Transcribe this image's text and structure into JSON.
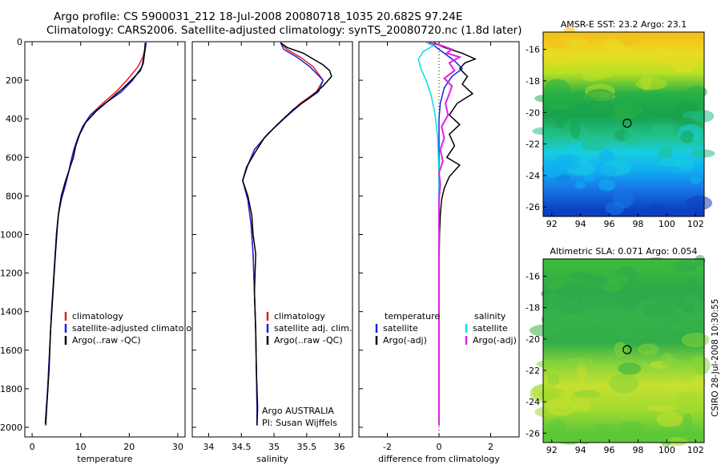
{
  "header": {
    "line1": "Argo profile: CS 5900031_212 18-Jul-2008 20080718_1035 20.682S 97.24E",
    "line2": "Climatology: CARS2006. Satellite-adjusted climatology: synTS_20080720.nc (1.8d later)"
  },
  "chart_data": [
    {
      "type": "line",
      "id": "temperature-panel",
      "xlabel": "temperature",
      "ylabel": "",
      "xlim": [
        -1.5,
        31.5
      ],
      "ylim": [
        2050,
        0
      ],
      "xticks": [
        0,
        10,
        20,
        30
      ],
      "yticks": [
        0,
        200,
        400,
        600,
        800,
        1000,
        1200,
        1400,
        1600,
        1800,
        2000
      ],
      "legend": {
        "position": "lower-right",
        "entries": [
          "climatology",
          "satellite-adjusted climatology",
          "Argo(..raw -QC)"
        ]
      },
      "series": [
        {
          "name": "climatology",
          "color": "#e02020",
          "width": 1.5,
          "points": [
            [
              23.4,
              5
            ],
            [
              23.2,
              40
            ],
            [
              22.8,
              80
            ],
            [
              21.8,
              130
            ],
            [
              19.5,
              200
            ],
            [
              17.3,
              260
            ],
            [
              14.5,
              320
            ],
            [
              12,
              380
            ],
            [
              10.5,
              440
            ],
            [
              9.4,
              500
            ],
            [
              8.6,
              560
            ],
            [
              8,
              620
            ],
            [
              7.5,
              680
            ],
            [
              6.9,
              740
            ],
            [
              6,
              820
            ],
            [
              5.4,
              900
            ],
            [
              5,
              1000
            ],
            [
              4.5,
              1200
            ],
            [
              4,
              1400
            ],
            [
              3.6,
              1600
            ],
            [
              3.2,
              1800
            ],
            [
              2.7,
              1980
            ]
          ]
        },
        {
          "name": "satellite-adjusted climatology",
          "color": "#2020e0",
          "width": 1.5,
          "points": [
            [
              23.5,
              5
            ],
            [
              23.3,
              40
            ],
            [
              23,
              80
            ],
            [
              22.6,
              130
            ],
            [
              20.7,
              200
            ],
            [
              18.4,
              260
            ],
            [
              15,
              320
            ],
            [
              12,
              380
            ],
            [
              10.4,
              440
            ],
            [
              9.4,
              500
            ],
            [
              8.6,
              560
            ],
            [
              8,
              620
            ],
            [
              7.5,
              680
            ],
            [
              6.9,
              740
            ],
            [
              6,
              820
            ],
            [
              5.4,
              900
            ],
            [
              5,
              1000
            ],
            [
              4.5,
              1200
            ],
            [
              4,
              1400
            ],
            [
              3.6,
              1600
            ],
            [
              3.2,
              1800
            ],
            [
              2.7,
              1980
            ]
          ]
        },
        {
          "name": "Argo(..raw -QC)",
          "color": "#000000",
          "width": 1.5,
          "points": [
            [
              23.3,
              5
            ],
            [
              23.2,
              40
            ],
            [
              23.1,
              70
            ],
            [
              22.9,
              110
            ],
            [
              22.3,
              150
            ],
            [
              20.8,
              190
            ],
            [
              18.8,
              240
            ],
            [
              16,
              300
            ],
            [
              13.2,
              360
            ],
            [
              11,
              420
            ],
            [
              9.8,
              480
            ],
            [
              9,
              540
            ],
            [
              8.5,
              600
            ],
            [
              7.7,
              660
            ],
            [
              6.9,
              720
            ],
            [
              6,
              800
            ],
            [
              5.5,
              880
            ],
            [
              5.2,
              960
            ],
            [
              4.8,
              1100
            ],
            [
              4.3,
              1300
            ],
            [
              3.8,
              1500
            ],
            [
              3.5,
              1700
            ],
            [
              3,
              1900
            ],
            [
              2.8,
              1990
            ]
          ]
        }
      ]
    },
    {
      "type": "line",
      "id": "salinity-panel",
      "xlabel": "salinity",
      "ylabel": "",
      "xlim": [
        33.75,
        36.2
      ],
      "ylim": [
        2050,
        0
      ],
      "xticks": [
        34,
        34.5,
        35,
        35.5,
        36
      ],
      "xticklabels": [
        "34",
        "34.5",
        "35",
        "35.5",
        "36"
      ],
      "legend": {
        "position": "lower-right",
        "entries": [
          "climatology",
          "satellite adj. clim.",
          "Argo(..raw -QC)"
        ]
      },
      "annotations": [
        "Argo AUSTRALIA",
        "PI: Susan Wijffels"
      ],
      "series": [
        {
          "name": "climatology",
          "color": "#e02020",
          "width": 1.5,
          "points": [
            [
              35.1,
              5
            ],
            [
              35.2,
              40
            ],
            [
              35.4,
              80
            ],
            [
              35.6,
              130
            ],
            [
              35.75,
              200
            ],
            [
              35.65,
              260
            ],
            [
              35.4,
              320
            ],
            [
              35.15,
              400
            ],
            [
              34.9,
              480
            ],
            [
              34.7,
              560
            ],
            [
              34.6,
              640
            ],
            [
              34.52,
              720
            ],
            [
              34.6,
              820
            ],
            [
              34.65,
              950
            ],
            [
              34.68,
              1100
            ],
            [
              34.7,
              1300
            ],
            [
              34.72,
              1500
            ],
            [
              34.73,
              1700
            ],
            [
              34.74,
              1900
            ],
            [
              34.74,
              1990
            ]
          ]
        },
        {
          "name": "satellite adj. clim.",
          "color": "#2020e0",
          "width": 1.5,
          "points": [
            [
              35.1,
              5
            ],
            [
              35.15,
              40
            ],
            [
              35.35,
              80
            ],
            [
              35.55,
              130
            ],
            [
              35.75,
              200
            ],
            [
              35.68,
              260
            ],
            [
              35.42,
              320
            ],
            [
              35.15,
              400
            ],
            [
              34.9,
              480
            ],
            [
              34.7,
              560
            ],
            [
              34.6,
              640
            ],
            [
              34.52,
              720
            ],
            [
              34.6,
              820
            ],
            [
              34.65,
              950
            ],
            [
              34.68,
              1100
            ],
            [
              34.7,
              1300
            ],
            [
              34.72,
              1500
            ],
            [
              34.73,
              1700
            ],
            [
              34.74,
              1900
            ],
            [
              34.74,
              1990
            ]
          ]
        },
        {
          "name": "Argo(..raw -QC)",
          "color": "#000000",
          "width": 1.5,
          "points": [
            [
              35.1,
              5
            ],
            [
              35.2,
              30
            ],
            [
              35.45,
              60
            ],
            [
              35.6,
              90
            ],
            [
              35.75,
              120
            ],
            [
              35.85,
              150
            ],
            [
              35.88,
              180
            ],
            [
              35.75,
              230
            ],
            [
              35.55,
              290
            ],
            [
              35.3,
              350
            ],
            [
              35.05,
              430
            ],
            [
              34.85,
              500
            ],
            [
              34.7,
              580
            ],
            [
              34.58,
              650
            ],
            [
              34.52,
              720
            ],
            [
              34.6,
              800
            ],
            [
              34.66,
              900
            ],
            [
              34.68,
              1000
            ],
            [
              34.72,
              1100
            ],
            [
              34.7,
              1300
            ],
            [
              34.72,
              1500
            ],
            [
              34.73,
              1700
            ],
            [
              34.75,
              1900
            ],
            [
              34.74,
              1990
            ]
          ]
        }
      ]
    },
    {
      "type": "line",
      "id": "difference-panel",
      "xlabel": "difference from climatology",
      "ylabel": "",
      "xlim": [
        -3.1,
        3.1
      ],
      "ylim": [
        2050,
        0
      ],
      "xticks": [
        -2,
        0,
        2
      ],
      "legend": {
        "position": "lower",
        "entries": [
          "temperature",
          "satellite",
          "Argo(-adj)",
          "salinity",
          "satellite",
          "Argo(-adj)"
        ]
      },
      "series": [
        {
          "name": "temperature satellite",
          "color": "#2020e0",
          "width": 1.5,
          "points": [
            [
              -0.3,
              5
            ],
            [
              -0.1,
              30
            ],
            [
              0.2,
              60
            ],
            [
              0.6,
              100
            ],
            [
              0.9,
              140
            ],
            [
              0.5,
              180
            ],
            [
              0.2,
              240
            ],
            [
              0.05,
              320
            ],
            [
              0,
              400
            ],
            [
              0,
              600
            ],
            [
              0,
              1000
            ],
            [
              0,
              1400
            ],
            [
              0,
              1990
            ]
          ]
        },
        {
          "name": "temperature Argo(-adj)",
          "color": "#000000",
          "width": 1.5,
          "points": [
            [
              -0.2,
              5
            ],
            [
              0.2,
              30
            ],
            [
              0.9,
              60
            ],
            [
              1.4,
              90
            ],
            [
              1,
              110
            ],
            [
              0.8,
              140
            ],
            [
              1.1,
              180
            ],
            [
              0.9,
              220
            ],
            [
              1.3,
              270
            ],
            [
              0.7,
              320
            ],
            [
              0.4,
              380
            ],
            [
              0.8,
              430
            ],
            [
              0.4,
              480
            ],
            [
              0.6,
              540
            ],
            [
              0.3,
              600
            ],
            [
              0.8,
              640
            ],
            [
              0.4,
              700
            ],
            [
              0.2,
              760
            ],
            [
              0.1,
              820
            ],
            [
              0.05,
              900
            ],
            [
              0.02,
              1000
            ],
            [
              0,
              1200
            ],
            [
              0,
              1600
            ],
            [
              0,
              1990
            ]
          ]
        },
        {
          "name": "salinity satellite",
          "color": "#00e0e0",
          "width": 1.5,
          "points": [
            [
              -0.5,
              5
            ],
            [
              -0.2,
              20
            ],
            [
              -0.6,
              50
            ],
            [
              -0.8,
              90
            ],
            [
              -0.7,
              140
            ],
            [
              -0.5,
              200
            ],
            [
              -0.3,
              280
            ],
            [
              -0.15,
              380
            ],
            [
              -0.05,
              500
            ],
            [
              0,
              700
            ],
            [
              0,
              1000
            ],
            [
              0,
              1500
            ],
            [
              0,
              1990
            ]
          ]
        },
        {
          "name": "salinity Argo(-adj)",
          "color": "#e020e0",
          "width": 2,
          "points": [
            [
              -0.4,
              5
            ],
            [
              0.1,
              20
            ],
            [
              0.5,
              40
            ],
            [
              0.3,
              60
            ],
            [
              0.8,
              80
            ],
            [
              0.4,
              110
            ],
            [
              0.6,
              150
            ],
            [
              0.2,
              190
            ],
            [
              0.5,
              230
            ],
            [
              0.4,
              270
            ],
            [
              0.25,
              320
            ],
            [
              0.35,
              380
            ],
            [
              0.1,
              440
            ],
            [
              0.2,
              500
            ],
            [
              0.05,
              560
            ],
            [
              0.15,
              620
            ],
            [
              0,
              680
            ],
            [
              0.05,
              740
            ],
            [
              0,
              820
            ],
            [
              0,
              1000
            ],
            [
              0,
              1990
            ]
          ]
        }
      ]
    },
    {
      "type": "heatmap",
      "id": "sst-map",
      "title": "AMSR-E SST: 23.2  Argo: 23.1",
      "xlim": [
        91.4,
        102.6
      ],
      "ylim": [
        -26.6,
        -14.9
      ],
      "xticks": [
        92,
        94,
        96,
        98,
        100,
        102
      ],
      "yticks": [
        -16,
        -18,
        -20,
        -22,
        -24,
        -26
      ],
      "marker": [
        97.24,
        -20.68
      ],
      "bands": [
        {
          "y": -15.2,
          "color": "#f4c21a"
        },
        {
          "y": -16.3,
          "color": "#e8dd22"
        },
        {
          "y": -17.5,
          "color": "#b8e024"
        },
        {
          "y": -18.8,
          "color": "#28b046"
        },
        {
          "y": -20.2,
          "color": "#18a24c"
        },
        {
          "y": -21.5,
          "color": "#22c088"
        },
        {
          "y": -22.5,
          "color": "#18cde0"
        },
        {
          "y": -23.6,
          "color": "#10b0f0"
        },
        {
          "y": -24.8,
          "color": "#1878e8"
        },
        {
          "y": -26.2,
          "color": "#0c40c0"
        }
      ]
    },
    {
      "type": "heatmap",
      "id": "sla-map",
      "title": "Altimetric SLA: 0.071  Argo: 0.054",
      "xlim": [
        91.4,
        102.6
      ],
      "ylim": [
        -26.6,
        -14.9
      ],
      "xticks": [
        92,
        94,
        96,
        98,
        100,
        102
      ],
      "yticks": [
        -16,
        -18,
        -20,
        -22,
        -24,
        -26
      ],
      "marker": [
        97.24,
        -20.68
      ],
      "bands": [
        {
          "y": -15.3,
          "color": "#3cba3c"
        },
        {
          "y": -17.0,
          "color": "#2ea84a"
        },
        {
          "y": -18.6,
          "color": "#36b24a"
        },
        {
          "y": -20.2,
          "color": "#30ad48"
        },
        {
          "y": -21.6,
          "color": "#88d43a"
        },
        {
          "y": -23.0,
          "color": "#c8e030"
        },
        {
          "y": -24.5,
          "color": "#a0da30"
        },
        {
          "y": -26.0,
          "color": "#5cc838"
        }
      ]
    }
  ],
  "footer": {
    "credit": "CSIRO 28-Jul-2008 10:30:55"
  }
}
